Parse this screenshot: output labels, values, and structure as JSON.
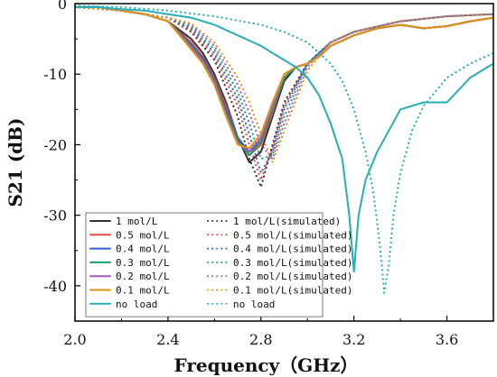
{
  "chart_data": {
    "type": "line",
    "title": "",
    "xlabel": "Frequency（GHz）",
    "ylabel": "S21 (dB)",
    "xlim": [
      2.0,
      3.8
    ],
    "ylim": [
      -45,
      0
    ],
    "xticks": [
      "2.0",
      "2.4",
      "2.8",
      "3.2",
      "3.6"
    ],
    "yticks": [
      "0",
      "-10",
      "-20",
      "-30",
      "-40"
    ],
    "grid": false,
    "legend_position": "bottom-left",
    "series": [
      {
        "name": "1 mol/L",
        "style": "solid",
        "color": "#333333",
        "x": [
          2.0,
          2.1,
          2.2,
          2.3,
          2.4,
          2.5,
          2.55,
          2.6,
          2.65,
          2.7,
          2.75,
          2.8,
          2.85,
          2.9,
          2.95,
          3.0,
          3.05,
          3.1,
          3.2,
          3.3,
          3.4,
          3.5,
          3.6,
          3.7,
          3.8
        ],
        "y": [
          -0.5,
          -0.5,
          -1.0,
          -1.5,
          -2.5,
          -5.0,
          -7.0,
          -10.0,
          -14.0,
          -19.0,
          -22.5,
          -21.0,
          -16.0,
          -11.0,
          -9.0,
          -8.5,
          -7.5,
          -6.0,
          -4.5,
          -3.5,
          -3.0,
          -3.5,
          -3.2,
          -2.5,
          -2.0
        ]
      },
      {
        "name": "0.5 mol/L",
        "style": "solid",
        "color": "#e8473f",
        "x": [
          2.0,
          2.1,
          2.2,
          2.3,
          2.4,
          2.5,
          2.55,
          2.6,
          2.65,
          2.7,
          2.75,
          2.8,
          2.85,
          2.9,
          2.95,
          3.0,
          3.05,
          3.1,
          3.2,
          3.3,
          3.4,
          3.5,
          3.6,
          3.7,
          3.8
        ],
        "y": [
          -0.5,
          -0.5,
          -1.0,
          -1.5,
          -2.5,
          -5.5,
          -7.5,
          -10.5,
          -14.5,
          -19.0,
          -21.5,
          -20.0,
          -15.5,
          -10.5,
          -9.0,
          -8.5,
          -7.5,
          -6.0,
          -4.5,
          -3.5,
          -3.0,
          -3.5,
          -3.2,
          -2.5,
          -2.0
        ]
      },
      {
        "name": "0.4 mol/L",
        "style": "solid",
        "color": "#2f62c9",
        "x": [
          2.0,
          2.1,
          2.2,
          2.3,
          2.4,
          2.5,
          2.55,
          2.6,
          2.65,
          2.7,
          2.75,
          2.8,
          2.85,
          2.9,
          2.95,
          3.0,
          3.05,
          3.1,
          3.2,
          3.3,
          3.4,
          3.5,
          3.6,
          3.7,
          3.8
        ],
        "y": [
          -0.5,
          -0.5,
          -1.0,
          -1.5,
          -2.5,
          -5.8,
          -7.8,
          -10.8,
          -15.0,
          -19.0,
          -21.0,
          -19.5,
          -15.0,
          -10.5,
          -9.0,
          -8.5,
          -7.5,
          -6.0,
          -4.5,
          -3.5,
          -3.0,
          -3.5,
          -3.2,
          -2.5,
          -2.0
        ]
      },
      {
        "name": "0.3 mol/L",
        "style": "solid",
        "color": "#1f9e6d",
        "x": [
          2.0,
          2.1,
          2.2,
          2.3,
          2.4,
          2.5,
          2.55,
          2.6,
          2.65,
          2.7,
          2.75,
          2.8,
          2.85,
          2.9,
          2.95,
          3.0,
          3.05,
          3.1,
          3.2,
          3.3,
          3.4,
          3.5,
          3.6,
          3.7,
          3.8
        ],
        "y": [
          -0.5,
          -0.5,
          -1.0,
          -1.5,
          -2.5,
          -6.0,
          -8.0,
          -11.0,
          -15.5,
          -19.5,
          -21.5,
          -19.5,
          -15.0,
          -10.5,
          -9.0,
          -8.5,
          -7.5,
          -6.0,
          -4.5,
          -3.5,
          -3.0,
          -3.5,
          -3.2,
          -2.5,
          -2.0
        ]
      },
      {
        "name": "0.2 mol/L",
        "style": "solid",
        "color": "#9b59d0",
        "x": [
          2.0,
          2.1,
          2.2,
          2.3,
          2.4,
          2.5,
          2.55,
          2.6,
          2.65,
          2.7,
          2.75,
          2.8,
          2.85,
          2.9,
          2.95,
          3.0,
          3.05,
          3.1,
          3.2,
          3.3,
          3.4,
          3.5,
          3.6,
          3.7,
          3.8
        ],
        "y": [
          -0.5,
          -0.5,
          -1.0,
          -1.5,
          -2.5,
          -6.2,
          -8.2,
          -11.2,
          -15.8,
          -19.8,
          -21.0,
          -19.0,
          -14.5,
          -10.0,
          -9.0,
          -8.5,
          -7.5,
          -6.0,
          -4.5,
          -3.5,
          -3.0,
          -3.5,
          -3.2,
          -2.5,
          -2.0
        ]
      },
      {
        "name": "0.1 mol/L",
        "style": "solid",
        "color": "#e3920f",
        "x": [
          2.0,
          2.1,
          2.2,
          2.3,
          2.4,
          2.5,
          2.55,
          2.6,
          2.65,
          2.7,
          2.75,
          2.8,
          2.85,
          2.9,
          2.95,
          3.0,
          3.05,
          3.1,
          3.2,
          3.3,
          3.4,
          3.5,
          3.6,
          3.7,
          3.8
        ],
        "y": [
          -0.5,
          -0.5,
          -1.0,
          -1.5,
          -2.5,
          -6.5,
          -8.5,
          -11.5,
          -16.0,
          -20.0,
          -20.5,
          -18.5,
          -14.0,
          -10.0,
          -9.0,
          -8.5,
          -7.5,
          -6.0,
          -4.5,
          -3.5,
          -3.0,
          -3.5,
          -3.2,
          -2.5,
          -2.0
        ]
      },
      {
        "name": "no load",
        "style": "solid",
        "color": "#25aeb8",
        "x": [
          2.0,
          2.1,
          2.2,
          2.3,
          2.4,
          2.5,
          2.6,
          2.7,
          2.8,
          2.85,
          2.9,
          2.95,
          3.0,
          3.05,
          3.1,
          3.15,
          3.18,
          3.2,
          3.22,
          3.25,
          3.3,
          3.35,
          3.4,
          3.5,
          3.6,
          3.7,
          3.8
        ],
        "y": [
          -0.5,
          -0.5,
          -0.8,
          -1.0,
          -1.5,
          -2.0,
          -3.0,
          -4.5,
          -6.0,
          -7.0,
          -8.0,
          -9.0,
          -10.5,
          -13.0,
          -17.0,
          -22.0,
          -30.0,
          -38.0,
          -30.0,
          -25.0,
          -21.0,
          -18.0,
          -15.0,
          -14.0,
          -14.0,
          -10.5,
          -8.5
        ]
      },
      {
        "name": "1 mol/L(simulated)",
        "style": "dotted",
        "color": "#333333",
        "x": [
          2.0,
          2.2,
          2.4,
          2.5,
          2.6,
          2.7,
          2.75,
          2.8,
          2.85,
          2.9,
          3.0,
          3.1,
          3.2,
          3.4,
          3.6,
          3.8
        ],
        "y": [
          -0.5,
          -1.0,
          -2.0,
          -4.0,
          -8.0,
          -16.0,
          -22.0,
          -26.0,
          -20.0,
          -14.0,
          -8.5,
          -5.5,
          -4.0,
          -2.5,
          -1.8,
          -1.5
        ]
      },
      {
        "name": "0.5 mol/L(simulated)",
        "style": "dotted",
        "color": "#e8473f",
        "x": [
          2.0,
          2.2,
          2.4,
          2.5,
          2.6,
          2.7,
          2.75,
          2.8,
          2.85,
          2.9,
          3.0,
          3.1,
          3.2,
          3.4,
          3.6,
          3.8
        ],
        "y": [
          -0.5,
          -1.0,
          -2.0,
          -3.8,
          -7.5,
          -14.5,
          -20.0,
          -25.0,
          -20.5,
          -14.5,
          -8.5,
          -5.5,
          -4.0,
          -2.5,
          -1.8,
          -1.5
        ]
      },
      {
        "name": "0.4 mol/L(simulated)",
        "style": "dotted",
        "color": "#2f62c9",
        "x": [
          2.0,
          2.2,
          2.4,
          2.5,
          2.6,
          2.7,
          2.75,
          2.8,
          2.85,
          2.9,
          3.0,
          3.1,
          3.2,
          3.4,
          3.6,
          3.8
        ],
        "y": [
          -0.5,
          -1.0,
          -2.0,
          -3.5,
          -7.0,
          -13.5,
          -18.5,
          -24.0,
          -21.0,
          -15.0,
          -8.5,
          -5.5,
          -4.0,
          -2.5,
          -1.8,
          -1.5
        ]
      },
      {
        "name": "0.3 mol/L(simulated)",
        "style": "dotted",
        "color": "#1f9e6d",
        "x": [
          2.0,
          2.2,
          2.4,
          2.5,
          2.6,
          2.7,
          2.75,
          2.8,
          2.85,
          2.9,
          3.0,
          3.1,
          3.2,
          3.4,
          3.6,
          3.8
        ],
        "y": [
          -0.5,
          -1.0,
          -2.0,
          -3.3,
          -6.5,
          -12.5,
          -17.0,
          -22.0,
          -21.5,
          -16.0,
          -8.5,
          -5.5,
          -4.0,
          -2.5,
          -1.8,
          -1.5
        ]
      },
      {
        "name": "0.2 mol/L(simulated)",
        "style": "dotted",
        "color": "#9b59d0",
        "x": [
          2.0,
          2.2,
          2.4,
          2.5,
          2.6,
          2.7,
          2.75,
          2.8,
          2.85,
          2.9,
          3.0,
          3.1,
          3.2,
          3.4,
          3.6,
          3.8
        ],
        "y": [
          -0.5,
          -1.0,
          -2.0,
          -3.0,
          -6.0,
          -11.5,
          -15.5,
          -20.0,
          -22.0,
          -17.0,
          -9.0,
          -5.5,
          -4.0,
          -2.5,
          -1.8,
          -1.5
        ]
      },
      {
        "name": "0.1 mol/L(simulated)",
        "style": "dotted",
        "color": "#e3920f",
        "x": [
          2.0,
          2.2,
          2.4,
          2.5,
          2.6,
          2.7,
          2.75,
          2.8,
          2.85,
          2.9,
          3.0,
          3.1,
          3.2,
          3.4,
          3.6,
          3.8
        ],
        "y": [
          -0.5,
          -1.0,
          -2.0,
          -2.8,
          -5.5,
          -10.5,
          -14.0,
          -18.5,
          -22.5,
          -18.0,
          -9.5,
          -5.5,
          -4.0,
          -2.5,
          -1.8,
          -1.5
        ]
      },
      {
        "name": "no load",
        "style": "dotted",
        "color": "#25aeb8",
        "x": [
          2.0,
          2.2,
          2.4,
          2.6,
          2.8,
          2.9,
          3.0,
          3.1,
          3.15,
          3.2,
          3.25,
          3.28,
          3.3,
          3.32,
          3.33,
          3.35,
          3.37,
          3.4,
          3.45,
          3.5,
          3.6,
          3.7,
          3.8
        ],
        "y": [
          -0.3,
          -0.5,
          -1.0,
          -1.8,
          -3.0,
          -4.0,
          -5.5,
          -8.5,
          -11.0,
          -15.0,
          -21.0,
          -26.0,
          -31.0,
          -37.0,
          -41.0,
          -37.0,
          -30.0,
          -24.0,
          -18.0,
          -14.5,
          -10.5,
          -8.5,
          -7.0
        ]
      }
    ]
  }
}
